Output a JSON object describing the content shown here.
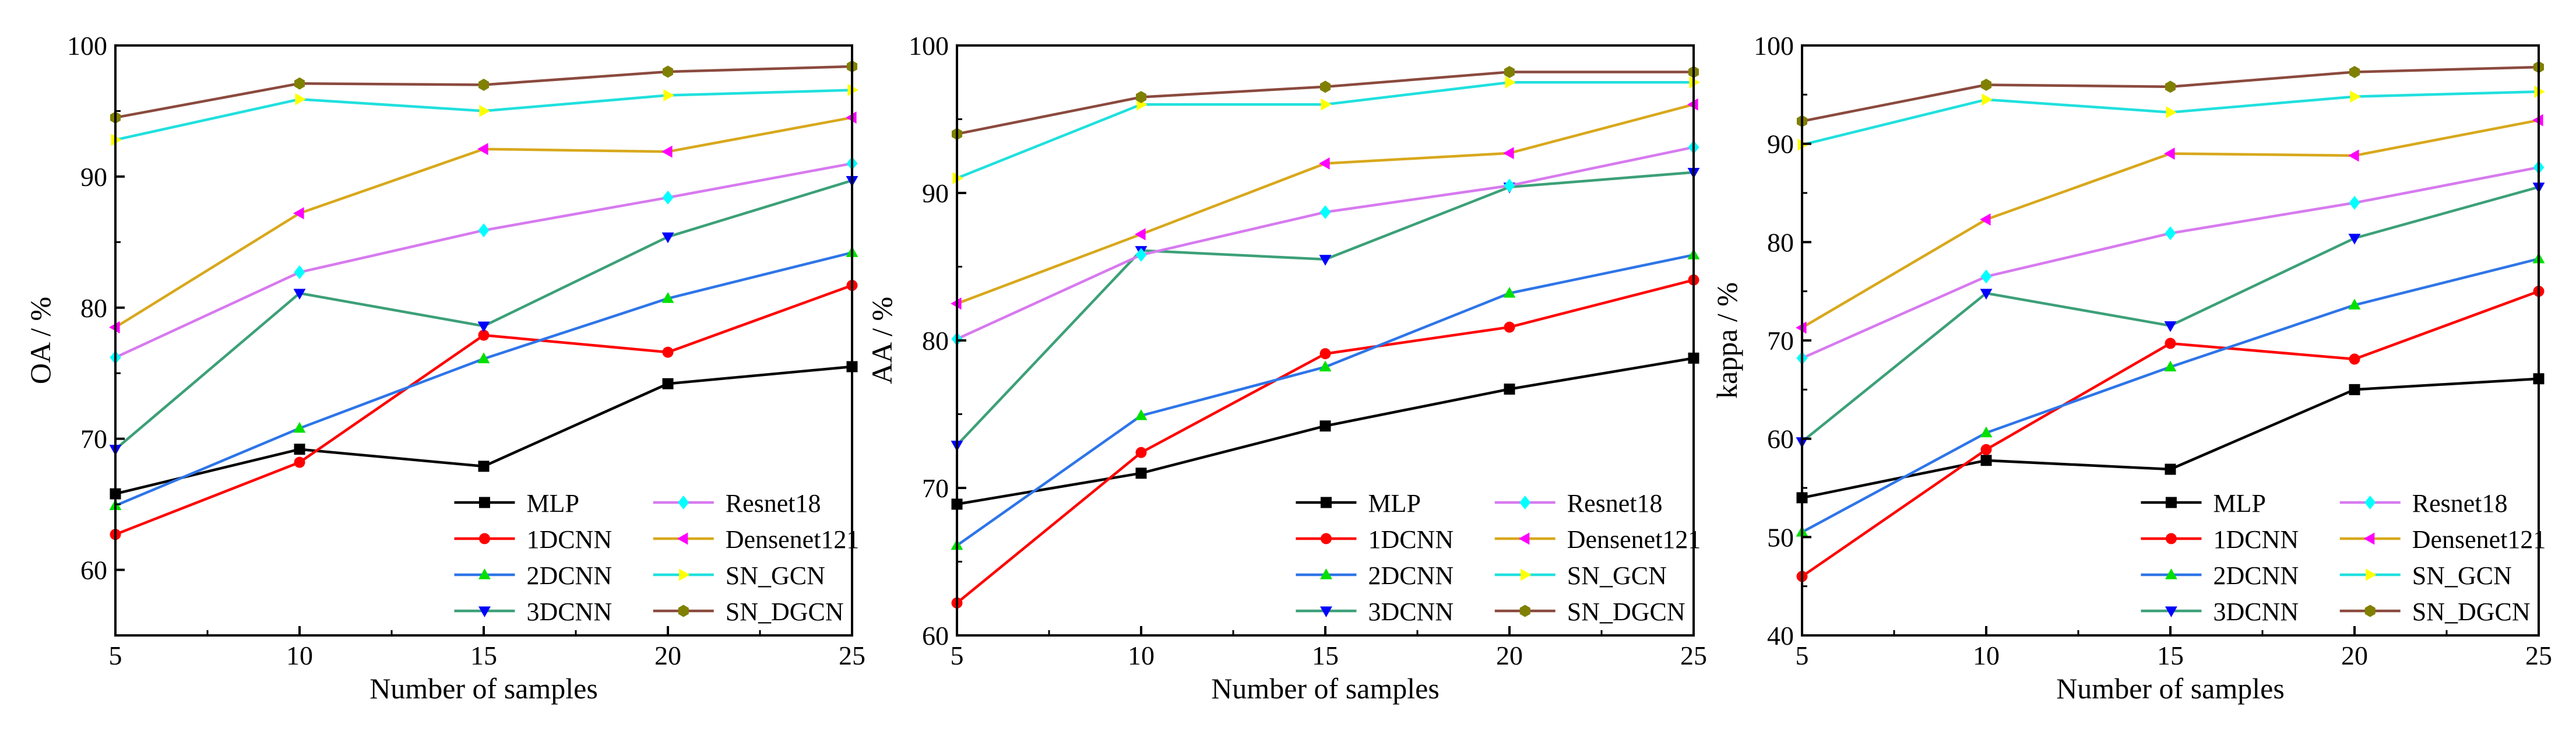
{
  "legend_entries": [
    "MLP",
    "1DCNN",
    "2DCNN",
    "3DCNN",
    "Resnet18",
    "Densenet121",
    "SN_GCN",
    "SN_DGCN"
  ],
  "series_colors": {
    "MLP": "#000000",
    "1DCNN": "#FF0000",
    "2DCNN": "#2E75E8",
    "3DCNN": "#3CA078",
    "Resnet18": "#D77AEF",
    "Densenet121": "#D8A81C",
    "SN_GCN": "#20E0DE",
    "SN_DGCN": "#8B4A3E"
  },
  "marker_colors": {
    "MLP": "#000000",
    "1DCNN": "#FF0000",
    "2DCNN": "#00E000",
    "3DCNN": "#0000FF",
    "Resnet18": "#00FFFF",
    "Densenet121": "#FF00FF",
    "SN_GCN": "#FFFF00",
    "SN_DGCN": "#808000"
  },
  "marker_shapes": {
    "MLP": "square",
    "1DCNN": "circle",
    "2DCNN": "triangle-up",
    "3DCNN": "triangle-down",
    "Resnet18": "diamond",
    "Densenet121": "triangle-left",
    "SN_GCN": "triangle-right",
    "SN_DGCN": "hexagon"
  },
  "chart_data": [
    {
      "type": "line",
      "title": "",
      "xlabel": "Number of samples",
      "ylabel": "OA / %",
      "x": [
        5,
        10,
        15,
        20,
        25
      ],
      "xlim": [
        5,
        25
      ],
      "ylim": [
        55,
        100
      ],
      "yticks": [
        60,
        70,
        80,
        90,
        100
      ],
      "series": [
        {
          "name": "MLP",
          "values": [
            65.8,
            69.2,
            67.9,
            74.2,
            75.5
          ]
        },
        {
          "name": "1DCNN",
          "values": [
            62.7,
            68.2,
            77.9,
            76.6,
            81.7
          ]
        },
        {
          "name": "2DCNN",
          "values": [
            64.9,
            70.8,
            76.1,
            80.7,
            84.2
          ]
        },
        {
          "name": "3DCNN",
          "values": [
            69.2,
            81.1,
            78.6,
            85.4,
            89.7
          ]
        },
        {
          "name": "Resnet18",
          "values": [
            76.2,
            82.7,
            85.9,
            88.4,
            91.0
          ]
        },
        {
          "name": "Densenet121",
          "values": [
            78.5,
            87.2,
            92.1,
            91.9,
            94.5
          ]
        },
        {
          "name": "SN_GCN",
          "values": [
            92.8,
            95.9,
            95.0,
            96.2,
            96.6
          ]
        },
        {
          "name": "SN_DGCN",
          "values": [
            94.5,
            97.1,
            97.0,
            98.0,
            98.4
          ]
        }
      ]
    },
    {
      "type": "line",
      "title": "",
      "xlabel": "Number of samples",
      "ylabel": "AA / %",
      "x": [
        5,
        10,
        15,
        20,
        25
      ],
      "xlim": [
        5,
        25
      ],
      "ylim": [
        60,
        100
      ],
      "yticks": [
        60,
        70,
        80,
        90,
        100
      ],
      "series": [
        {
          "name": "MLP",
          "values": [
            68.9,
            71.0,
            74.2,
            76.7,
            78.8
          ]
        },
        {
          "name": "1DCNN",
          "values": [
            62.2,
            72.4,
            79.1,
            80.9,
            84.1
          ]
        },
        {
          "name": "2DCNN",
          "values": [
            66.1,
            74.9,
            78.2,
            83.2,
            85.8
          ]
        },
        {
          "name": "3DCNN",
          "values": [
            72.9,
            86.1,
            85.5,
            90.4,
            91.4
          ]
        },
        {
          "name": "Resnet18",
          "values": [
            80.1,
            85.8,
            88.7,
            90.5,
            93.1
          ]
        },
        {
          "name": "Densenet121",
          "values": [
            82.5,
            87.2,
            92.0,
            92.7,
            96.0
          ]
        },
        {
          "name": "SN_GCN",
          "values": [
            91.0,
            96.0,
            96.0,
            97.5,
            97.5
          ]
        },
        {
          "name": "SN_DGCN",
          "values": [
            94.0,
            96.5,
            97.2,
            98.2,
            98.2
          ]
        }
      ]
    },
    {
      "type": "line",
      "title": "",
      "xlabel": "Number of samples",
      "ylabel": "kappa / %",
      "x": [
        5,
        10,
        15,
        20,
        25
      ],
      "xlim": [
        5,
        25
      ],
      "ylim": [
        40,
        100
      ],
      "yticks": [
        40,
        50,
        60,
        70,
        80,
        90,
        100
      ],
      "series": [
        {
          "name": "MLP",
          "values": [
            54.0,
            57.8,
            56.9,
            65.0,
            66.1
          ]
        },
        {
          "name": "1DCNN",
          "values": [
            46.0,
            58.9,
            69.7,
            68.1,
            75.0
          ]
        },
        {
          "name": "2DCNN",
          "values": [
            50.5,
            60.6,
            67.3,
            73.6,
            78.3
          ]
        },
        {
          "name": "3DCNN",
          "values": [
            59.7,
            74.8,
            71.5,
            80.4,
            85.6
          ]
        },
        {
          "name": "Resnet18",
          "values": [
            68.2,
            76.5,
            80.9,
            84.0,
            87.6
          ]
        },
        {
          "name": "Densenet121",
          "values": [
            71.3,
            82.3,
            89.0,
            88.8,
            92.4
          ]
        },
        {
          "name": "SN_GCN",
          "values": [
            89.9,
            94.5,
            93.2,
            94.8,
            95.3
          ]
        },
        {
          "name": "SN_DGCN",
          "values": [
            92.3,
            96.0,
            95.8,
            97.3,
            97.8
          ]
        }
      ]
    }
  ]
}
